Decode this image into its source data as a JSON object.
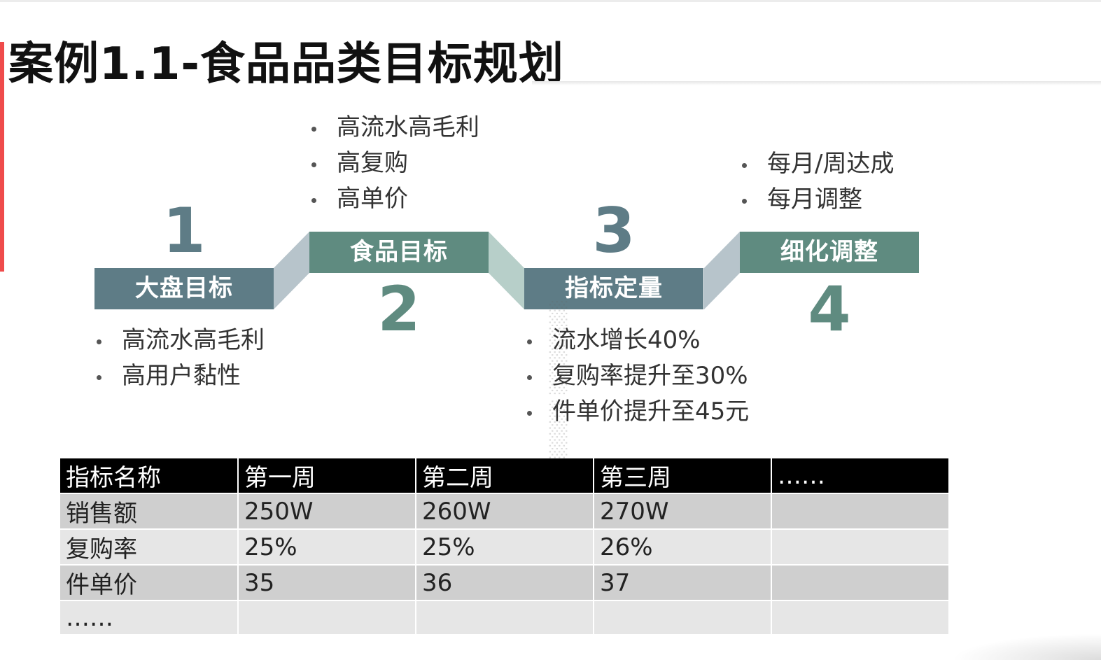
{
  "title": "案例1.1-食品品类目标规划",
  "colors": {
    "accent": "#ef4b4b",
    "step_dark": "#5e7c86",
    "step_green": "#5f8b80",
    "connector_1": "#b7c4cb",
    "connector_2": "#b7cfc9",
    "table_header": "#000000"
  },
  "steps": [
    {
      "number": "1",
      "label": "大盘目标",
      "bullets": [
        "高流水高毛利",
        "高用户黏性"
      ]
    },
    {
      "number": "2",
      "label": "食品目标",
      "bullets": [
        "高流水高毛利",
        "高复购",
        "高单价"
      ]
    },
    {
      "number": "3",
      "label": "指标定量",
      "bullets": [
        "流水增长40%",
        "复购率提升至30%",
        "件单价提升至45元"
      ]
    },
    {
      "number": "4",
      "label": "细化调整",
      "bullets": [
        "每月/周达成",
        "每月调整"
      ]
    }
  ],
  "table": {
    "headers": [
      "指标名称",
      "第一周",
      "第二周",
      "第三周",
      "……"
    ],
    "rows": [
      [
        "销售额",
        "250W",
        "260W",
        "270W",
        ""
      ],
      [
        "复购率",
        "25%",
        "25%",
        "26%",
        ""
      ],
      [
        "件单价",
        "35",
        "36",
        "37",
        ""
      ],
      [
        "……",
        "",
        "",
        "",
        ""
      ]
    ]
  }
}
